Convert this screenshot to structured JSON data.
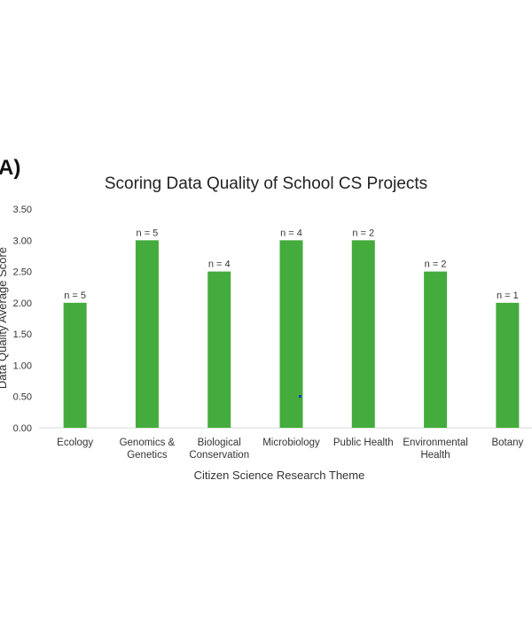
{
  "panel_label": "A)",
  "chart_data": {
    "type": "bar",
    "title": "Scoring Data Quality of School CS Projects",
    "xlabel": "Citizen Science Research Theme",
    "ylabel": "Data Quality Average Score",
    "ylim": [
      0,
      3.5
    ],
    "yticks": [
      "0.00",
      "0.50",
      "1.00",
      "1.50",
      "2.00",
      "2.50",
      "3.00",
      "3.50"
    ],
    "grid": false,
    "categories": [
      [
        "Ecology"
      ],
      [
        "Genomics &",
        "Genetics"
      ],
      [
        "Biological",
        "Conservation"
      ],
      [
        "Microbiology"
      ],
      [
        "Public Health"
      ],
      [
        "Environmental",
        "Health"
      ],
      [
        "Botany"
      ]
    ],
    "values": [
      2.0,
      3.0,
      2.5,
      3.0,
      3.0,
      2.5,
      2.0
    ],
    "data_labels": [
      "n = 5",
      "n = 5",
      "n = 4",
      "n = 4",
      "n = 2",
      "n = 2",
      "n = 1"
    ],
    "bar_color": "#43ac3c"
  }
}
